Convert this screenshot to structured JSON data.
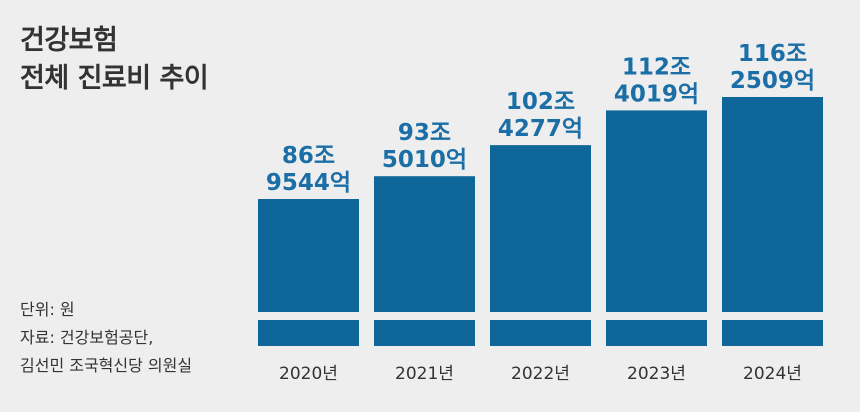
{
  "chart_data": {
    "type": "bar",
    "title_lines": [
      "건강보험",
      "전체 진료비 추이"
    ],
    "categories": [
      "2020년",
      "2021년",
      "2022년",
      "2023년",
      "2024년"
    ],
    "values": [
      86.9544,
      93.501,
      102.4277,
      112.4019,
      116.2509
    ],
    "value_labels": [
      [
        "86조",
        "9544억"
      ],
      [
        "93조",
        "5010억"
      ],
      [
        "102조",
        "4277억"
      ],
      [
        "112조",
        "4019억"
      ],
      [
        "116조",
        "2509억"
      ]
    ],
    "unit_note": "단위: 원",
    "source_lines": [
      "자료: 건강보험공단,",
      "김선민 조국혁신당 의원실"
    ],
    "colors": {
      "bar": "#0e6699",
      "label": "#1b6fa6",
      "background": "#eeeeee",
      "text": "#333333"
    }
  }
}
